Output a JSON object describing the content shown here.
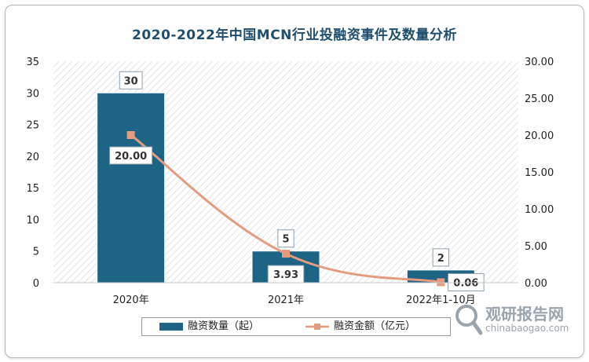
{
  "chart_data": {
    "type": "bar+line",
    "title": "2020-2022年中国MCN行业投融资事件及数量分析",
    "categories": [
      "2020年",
      "2021年",
      "2022年1-10月"
    ],
    "series": [
      {
        "name": "融资数量（起）",
        "type": "bar",
        "axis": "left",
        "values": [
          30,
          5,
          2
        ],
        "labels": [
          "30",
          "5",
          "2"
        ],
        "color": "#1e6485"
      },
      {
        "name": "融资金额（亿元）",
        "type": "line",
        "axis": "right",
        "values": [
          20.0,
          3.93,
          0.06
        ],
        "labels": [
          "20.00",
          "3.93",
          "0.06"
        ],
        "color": "#e49b7e"
      }
    ],
    "y_left": {
      "min": 0,
      "max": 35,
      "step": 5,
      "tick_labels": [
        "0",
        "5",
        "10",
        "15",
        "20",
        "25",
        "30",
        "35"
      ]
    },
    "y_right": {
      "min": 0,
      "max": 30,
      "step": 5,
      "tick_labels": [
        "0.00",
        "5.00",
        "10.00",
        "15.00",
        "20.00",
        "25.00",
        "30.00"
      ]
    },
    "plot_background": "diagonal-hatch",
    "legend_position": "bottom"
  },
  "watermark": {
    "brand": "观研报告网",
    "url": "chinabaogao.com",
    "icon": "magnifier-logo-icon"
  }
}
